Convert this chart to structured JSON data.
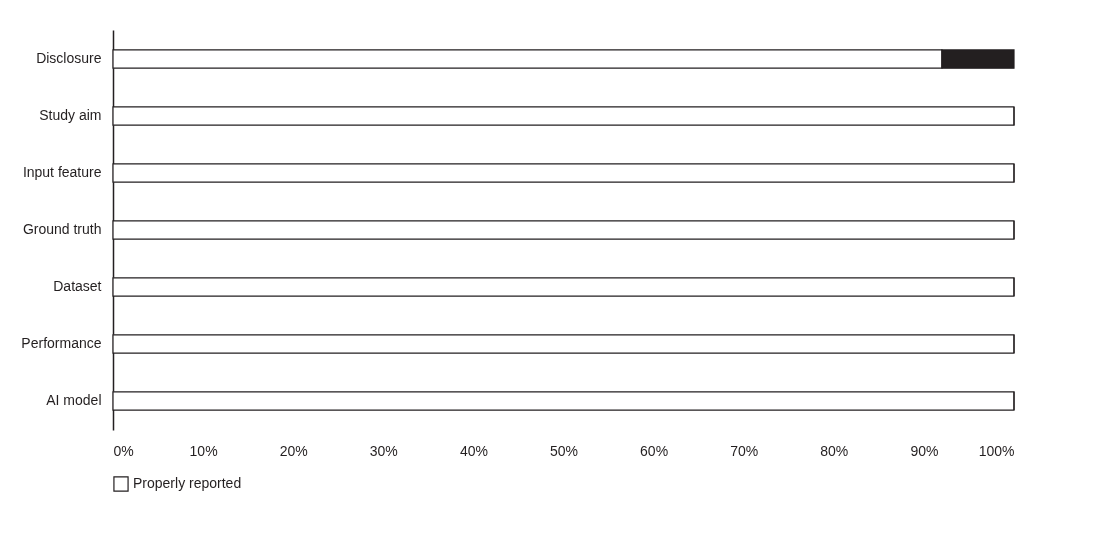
{
  "chart_data": {
    "type": "bar",
    "orientation": "horizontal",
    "stacked": true,
    "categories": [
      "Disclosure",
      "Study aim",
      "Input feature",
      "Ground truth",
      "Dataset",
      "Performance",
      "AI model"
    ],
    "series": [
      {
        "name": "Properly reported",
        "color": "#ffffff",
        "values": [
          92,
          100,
          100,
          100,
          100,
          100,
          100
        ]
      },
      {
        "color": "#231f20",
        "values": [
          8,
          0,
          0,
          0,
          0,
          0,
          0
        ]
      }
    ],
    "xlim": [
      0,
      100
    ],
    "xticks": [
      {
        "value": 0,
        "label": "0%"
      },
      {
        "value": 10,
        "label": "10%"
      },
      {
        "value": 20,
        "label": "20%"
      },
      {
        "value": 30,
        "label": "30%"
      },
      {
        "value": 40,
        "label": "40%"
      },
      {
        "value": 50,
        "label": "50%"
      },
      {
        "value": 60,
        "label": "60%"
      },
      {
        "value": 70,
        "label": "70%"
      },
      {
        "value": 80,
        "label": "80%"
      },
      {
        "value": 90,
        "label": "90%"
      },
      {
        "value": 100,
        "label": "100%"
      }
    ],
    "grid": false,
    "legend": "bottom"
  }
}
